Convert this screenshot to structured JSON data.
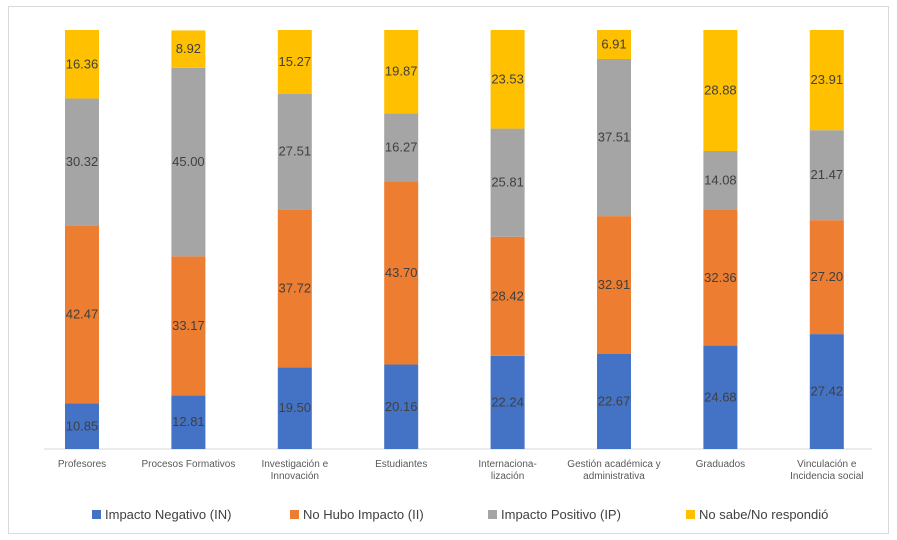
{
  "chart_data": {
    "type": "bar",
    "stacked": true,
    "categories": [
      [
        "Profesores"
      ],
      [
        "Procesos Formativos"
      ],
      [
        "Investigación e",
        "Innovación"
      ],
      [
        "Estudiantes"
      ],
      [
        "Internaciona-",
        "lización"
      ],
      [
        "Gestión académica y",
        "administrativa"
      ],
      [
        "Graduados"
      ],
      [
        "Vinculación e",
        "Incidencia social"
      ]
    ],
    "series": [
      {
        "name": "Impacto Negativo (IN)",
        "color": "#4472C4",
        "values": [
          10.85,
          12.81,
          19.5,
          20.16,
          22.24,
          22.67,
          24.68,
          27.42
        ]
      },
      {
        "name": "No Hubo Impacto (II)",
        "color": "#ED7D31",
        "values": [
          42.47,
          33.17,
          37.72,
          43.7,
          28.42,
          32.91,
          32.36,
          27.2
        ]
      },
      {
        "name": "Impacto Positivo (IP)",
        "color": "#A5A5A5",
        "values": [
          30.32,
          45.0,
          27.51,
          16.27,
          25.81,
          37.51,
          14.08,
          21.47
        ]
      },
      {
        "name": "No sabe/No respondió",
        "color": "#FFC000",
        "values": [
          16.36,
          8.92,
          15.27,
          19.87,
          23.53,
          6.91,
          28.88,
          23.91
        ]
      }
    ],
    "value_labels": [
      [
        "10.85",
        "42.47",
        "30.32",
        "16.36"
      ],
      [
        "12.81",
        "33.17",
        "45.00",
        "8.92"
      ],
      [
        "19.50",
        "37.72",
        "27.51",
        "15.27"
      ],
      [
        "20.16",
        "43.70",
        "16.27",
        "19.87"
      ],
      [
        "22.24",
        "28.42",
        "25.81",
        "23.53"
      ],
      [
        "22.67",
        "32.91",
        "37.51",
        "6.91"
      ],
      [
        "24.68",
        "32.36",
        "14.08",
        "28.88"
      ],
      [
        "27.42",
        "27.20",
        "21.47",
        "23.91"
      ]
    ],
    "ylim": [
      0,
      100
    ],
    "grid": false,
    "legend_position": "bottom"
  }
}
